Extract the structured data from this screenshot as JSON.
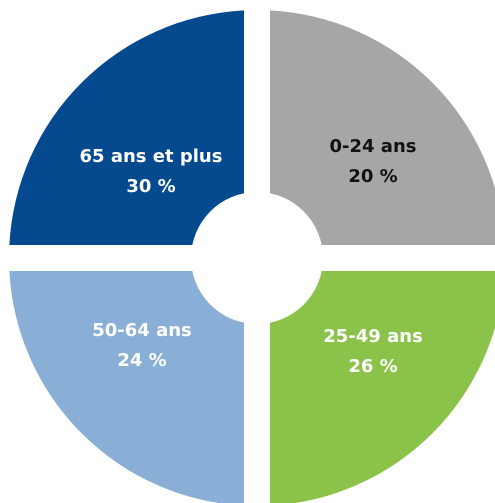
{
  "chart_data": {
    "type": "pie",
    "title": "",
    "legend": "none",
    "slices": [
      {
        "name": "0-24 ans",
        "value": 20,
        "value_label": "20 %",
        "color": "#A6A6A6",
        "text_color": "#111111"
      },
      {
        "name": "25-49 ans",
        "value": 26,
        "value_label": "26 %",
        "color": "#8BC34A",
        "text_color": "#ffffff"
      },
      {
        "name": "50-64 ans",
        "value": 24,
        "value_label": "24 %",
        "color": "#89AFD6",
        "text_color": "#ffffff"
      },
      {
        "name": "65 ans et plus",
        "value": 30,
        "value_label": "30 %",
        "color": "#05498E",
        "text_color": "#ffffff"
      }
    ]
  }
}
